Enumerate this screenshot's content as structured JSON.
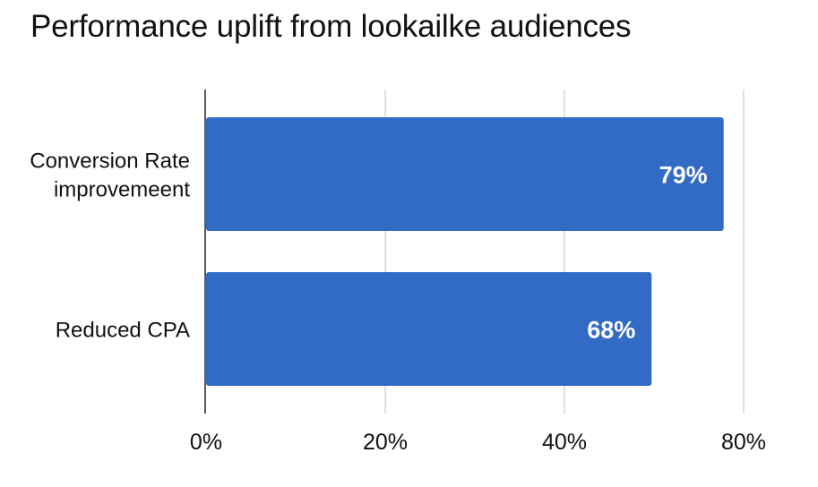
{
  "chart_data": {
    "type": "bar",
    "orientation": "horizontal",
    "title": "Performance uplift from lookailke audiences",
    "categories": [
      "Conversion Rate improvemeent",
      "Reduced CPA"
    ],
    "category_lines": [
      [
        "Conversion Rate",
        "improvemeent"
      ],
      [
        "Reduced CPA"
      ]
    ],
    "values": [
      79,
      68
    ],
    "data_labels": [
      "79%",
      "68%"
    ],
    "x_ticks": [
      "0%",
      "20%",
      "40%",
      "80%"
    ],
    "xlim": [
      0,
      80
    ],
    "grid": true,
    "bar_color": "#316BC6",
    "xlabel": "",
    "ylabel": ""
  }
}
